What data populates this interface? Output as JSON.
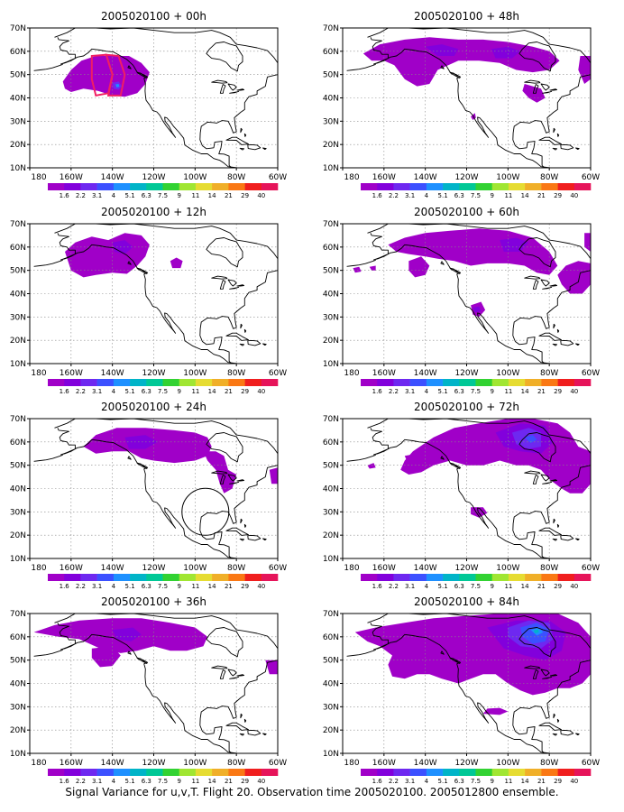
{
  "caption": "Signal Variance for u,v,T. Flight 20. Observation time 2005020100. 2005012800 ensemble.",
  "colorbar": {
    "labels": [
      "1.6",
      "2.2",
      "3.1",
      "4",
      "5.1",
      "6.3",
      "7.5",
      "9",
      "11",
      "14",
      "21",
      "29",
      "40"
    ],
    "colors": [
      "#a000c8",
      "#8200dc",
      "#6e28f0",
      "#3c50ff",
      "#1e90ff",
      "#00b4c8",
      "#00c896",
      "#32d232",
      "#a0e632",
      "#e6dc32",
      "#f0af28",
      "#fa7814",
      "#f01e1e",
      "#e6145a"
    ]
  },
  "axes": {
    "x_ticks": [
      "180",
      "160W",
      "140W",
      "120W",
      "100W",
      "80W",
      "60W"
    ],
    "y_ticks": [
      "70N",
      "60N",
      "50N",
      "40N",
      "30N",
      "20N",
      "10N"
    ]
  },
  "chart_data": [
    {
      "type": "heatmap",
      "title": "2005020100 + 00h",
      "lead_hours": 0,
      "xlim": [
        "180",
        "60W"
      ],
      "ylim": [
        "10N",
        "70N"
      ],
      "regions": [
        {
          "level": "1.6",
          "region": "Gulf of Alaska (~165W-120W, 40N-60N)"
        },
        {
          "level": "5.1",
          "region": "small core near 138W 45N"
        }
      ]
    },
    {
      "type": "heatmap",
      "title": "2005020100 + 48h",
      "lead_hours": 48,
      "xlim": [
        "180",
        "60W"
      ],
      "ylim": [
        "10N",
        "70N"
      ],
      "regions": [
        {
          "level": "1.6",
          "region": "Canada / northern US band"
        },
        {
          "level": "2.2",
          "region": "central Canada"
        }
      ]
    },
    {
      "type": "heatmap",
      "title": "2005020100 + 12h",
      "lead_hours": 12,
      "xlim": [
        "180",
        "60W"
      ],
      "ylim": [
        "10N",
        "70N"
      ],
      "regions": [
        {
          "level": "1.6",
          "region": "Gulf of Alaska to British Columbia"
        }
      ]
    },
    {
      "type": "heatmap",
      "title": "2005020100 + 60h",
      "lead_hours": 60,
      "xlim": [
        "180",
        "60W"
      ],
      "ylim": [
        "10N",
        "70N"
      ],
      "regions": [
        {
          "level": "1.6",
          "region": "Canada, eastern US, California"
        },
        {
          "level": "2.2",
          "region": "central Canada"
        }
      ]
    },
    {
      "type": "heatmap",
      "title": "2005020100 + 24h",
      "lead_hours": 24,
      "xlim": [
        "180",
        "60W"
      ],
      "ylim": [
        "10N",
        "70N"
      ],
      "regions": [
        {
          "level": "1.6",
          "region": "Alaska to western Canada, Great Lakes"
        }
      ]
    },
    {
      "type": "heatmap",
      "title": "2005020100 + 72h",
      "lead_hours": 72,
      "xlim": [
        "180",
        "60W"
      ],
      "ylim": [
        "10N",
        "70N"
      ],
      "regions": [
        {
          "level": "1.6",
          "region": "Canada and northern US"
        },
        {
          "level": "3.1",
          "region": "Hudson Bay area"
        },
        {
          "level": "4",
          "region": "near 85W 60N"
        }
      ]
    },
    {
      "type": "heatmap",
      "title": "2005020100 + 36h",
      "lead_hours": 36,
      "xlim": [
        "180",
        "60W"
      ],
      "ylim": [
        "10N",
        "70N"
      ],
      "regions": [
        {
          "level": "1.6",
          "region": "Alaska to central Canada"
        }
      ]
    },
    {
      "type": "heatmap",
      "title": "2005020100 + 84h",
      "lead_hours": 84,
      "xlim": [
        "180",
        "60W"
      ],
      "ylim": [
        "10N",
        "70N"
      ],
      "regions": [
        {
          "level": "1.6",
          "region": "most of Canada and US"
        },
        {
          "level": "3.1",
          "region": "Hudson Bay area"
        },
        {
          "level": "5.1",
          "region": "core near 85W 60N"
        }
      ]
    }
  ]
}
